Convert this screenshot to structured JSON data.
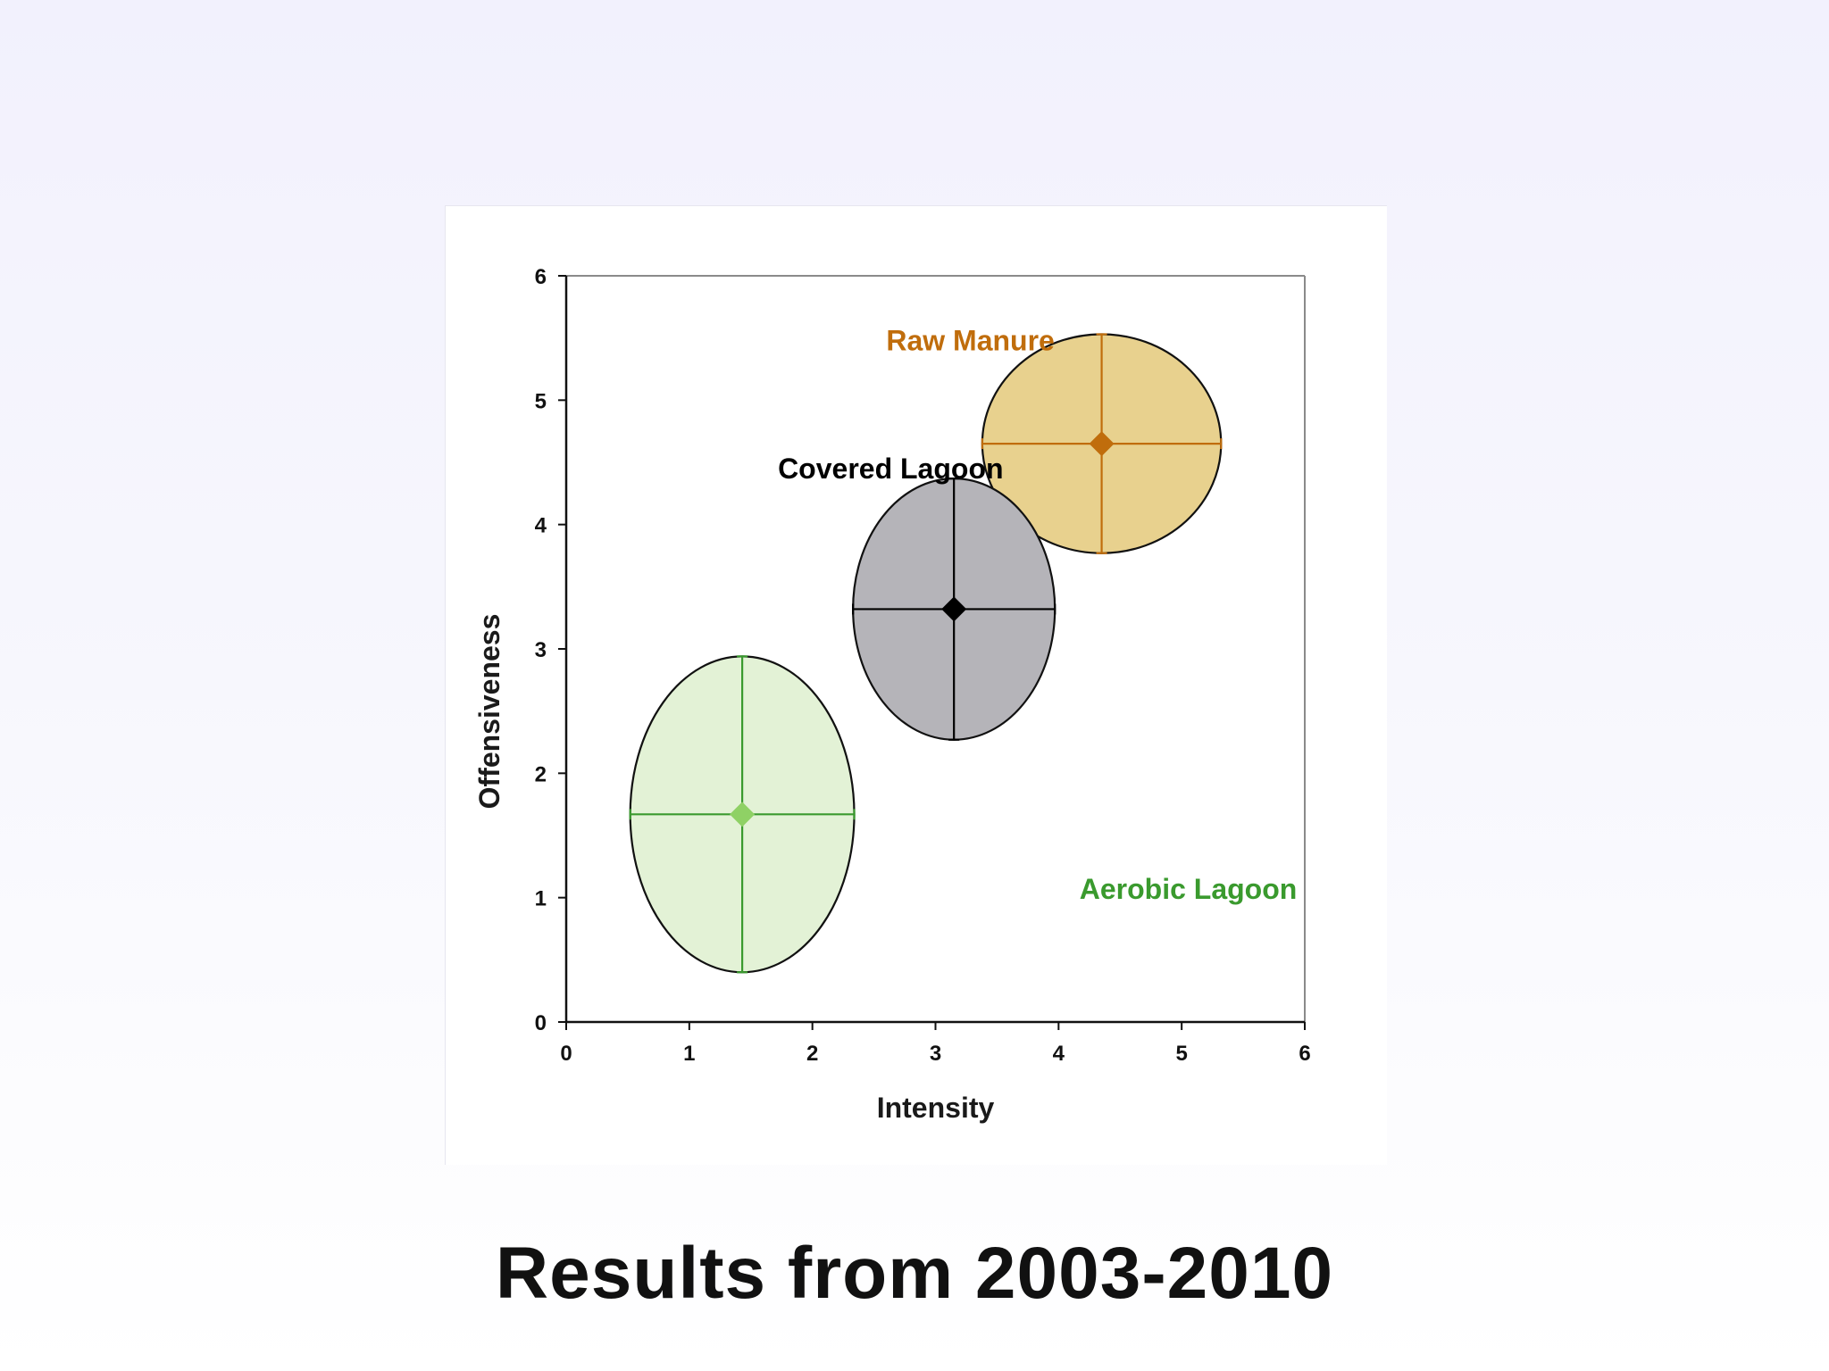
{
  "slide": {
    "title": "Results from 2003-2010"
  },
  "chart_data": {
    "type": "scatter",
    "title": "",
    "xlabel": "Intensity",
    "ylabel": "Offensiveness",
    "xlim": [
      0,
      6
    ],
    "ylim": [
      0,
      6
    ],
    "xticks": [
      "0",
      "1",
      "2",
      "3",
      "4",
      "5",
      "6"
    ],
    "yticks": [
      "0",
      "1",
      "2",
      "3",
      "4",
      "5",
      "6"
    ],
    "grid": false,
    "legend": "none",
    "series": [
      {
        "name": "Raw Manure",
        "x": 4.35,
        "y": 4.65,
        "x_err": 0.97,
        "y_err": 0.88,
        "color": "#c06d0c",
        "fill": "#e8d18e",
        "label_x": 2.6,
        "label_y": 5.4
      },
      {
        "name": "Covered Lagoon",
        "x": 3.15,
        "y": 3.32,
        "x_err": 0.82,
        "y_err": 1.05,
        "color": "#000000",
        "fill": "#b5b4b9",
        "label_x": 1.72,
        "label_y": 4.37
      },
      {
        "name": "Aerobic Lagoon",
        "x": 1.43,
        "y": 1.67,
        "x_err": 0.91,
        "y_err": 1.27,
        "color": "#3a9a2e",
        "fill": "#e3f2d6",
        "label_x": 4.17,
        "label_y": 0.99
      }
    ]
  }
}
